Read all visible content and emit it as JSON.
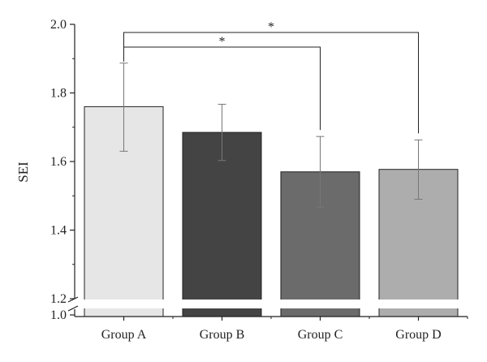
{
  "chart_data": {
    "type": "bar",
    "ylabel": "SEI",
    "categories": [
      "Group A",
      "Group B",
      "Group C",
      "Group D"
    ],
    "values": [
      1.76,
      1.685,
      1.57,
      1.577
    ],
    "error_upper": [
      1.887,
      1.767,
      1.673,
      1.663
    ],
    "error_lower": [
      1.63,
      1.603,
      1.467,
      1.49
    ],
    "colors": [
      "#e6e6e6",
      "#444444",
      "#6b6b6b",
      "#adadad"
    ],
    "ylim": [
      1.2,
      2.0
    ],
    "yticks": [
      "1.2",
      "1.4",
      "1.6",
      "1.8",
      "2.0"
    ],
    "broken_axis_lower_tick": "1.0",
    "axis_break": true,
    "significance": [
      {
        "from": "Group A",
        "to": "Group C",
        "label": "*"
      },
      {
        "from": "Group A",
        "to": "Group D",
        "label": "*"
      }
    ],
    "grid": false,
    "legend": "none"
  }
}
